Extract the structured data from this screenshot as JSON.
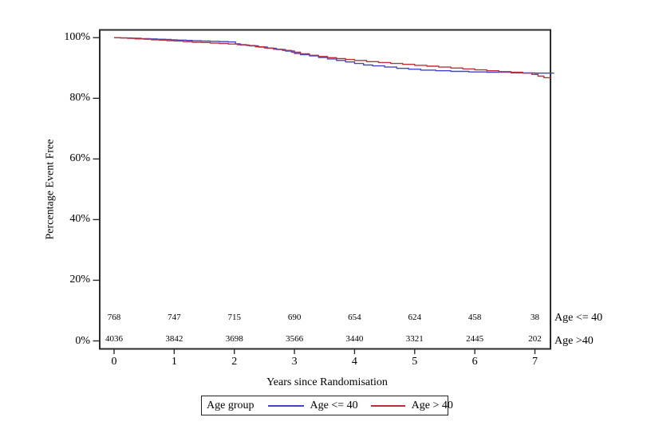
{
  "chart_data": {
    "type": "line",
    "subtype": "kaplan-meier-step",
    "title": "",
    "xlabel": "Years since Randomisation",
    "ylabel": "Percentage Event Free",
    "xlim": [
      0,
      7.3
    ],
    "ylim": [
      0,
      100
    ],
    "grid": false,
    "legend_position": "bottom",
    "axis_color": "#2b2b2b",
    "x_ticks": [
      {
        "value": 0,
        "label": "0"
      },
      {
        "value": 1,
        "label": "1"
      },
      {
        "value": 2,
        "label": "2"
      },
      {
        "value": 3,
        "label": "3"
      },
      {
        "value": 4,
        "label": "4"
      },
      {
        "value": 5,
        "label": "5"
      },
      {
        "value": 6,
        "label": "6"
      },
      {
        "value": 7,
        "label": "7"
      }
    ],
    "y_ticks": [
      {
        "value": 0,
        "label": "0%"
      },
      {
        "value": 20,
        "label": "20%"
      },
      {
        "value": 40,
        "label": "40%"
      },
      {
        "value": 60,
        "label": "60%"
      },
      {
        "value": 80,
        "label": "80%"
      },
      {
        "value": 100,
        "label": "100%"
      }
    ],
    "series": [
      {
        "name": "Age <= 40",
        "color": "#4343c8",
        "points": [
          [
            0,
            100
          ],
          [
            0.12,
            99.9
          ],
          [
            0.3,
            99.8
          ],
          [
            0.45,
            99.7
          ],
          [
            0.6,
            99.6
          ],
          [
            0.72,
            99.5
          ],
          [
            0.85,
            99.4
          ],
          [
            0.95,
            99.3
          ],
          [
            1.05,
            99.2
          ],
          [
            1.2,
            99.1
          ],
          [
            1.3,
            99.0
          ],
          [
            1.45,
            98.9
          ],
          [
            1.6,
            98.8
          ],
          [
            1.75,
            98.7
          ],
          [
            1.9,
            98.6
          ],
          [
            2.02,
            98.0
          ],
          [
            2.1,
            97.6
          ],
          [
            2.25,
            97.3
          ],
          [
            2.4,
            96.9
          ],
          [
            2.55,
            96.5
          ],
          [
            2.7,
            96.1
          ],
          [
            2.85,
            95.6
          ],
          [
            3.0,
            94.8
          ],
          [
            3.1,
            94.4
          ],
          [
            3.25,
            94.0
          ],
          [
            3.4,
            93.5
          ],
          [
            3.55,
            93.0
          ],
          [
            3.7,
            92.5
          ],
          [
            3.85,
            92.0
          ],
          [
            4.0,
            91.5
          ],
          [
            4.15,
            91.0
          ],
          [
            4.3,
            90.7
          ],
          [
            4.5,
            90.3
          ],
          [
            4.7,
            89.9
          ],
          [
            4.9,
            89.6
          ],
          [
            5.1,
            89.3
          ],
          [
            5.35,
            89.1
          ],
          [
            5.6,
            88.9
          ],
          [
            5.9,
            88.7
          ],
          [
            6.2,
            88.6
          ],
          [
            6.6,
            88.4
          ],
          [
            7.0,
            88.3
          ],
          [
            7.32,
            88.3
          ]
        ]
      },
      {
        "name": "Age > 40",
        "color": "#bb3038",
        "points": [
          [
            0,
            100
          ],
          [
            0.1,
            99.9
          ],
          [
            0.22,
            99.8
          ],
          [
            0.35,
            99.6
          ],
          [
            0.5,
            99.5
          ],
          [
            0.62,
            99.3
          ],
          [
            0.75,
            99.2
          ],
          [
            0.88,
            99.0
          ],
          [
            1.0,
            98.9
          ],
          [
            1.15,
            98.7
          ],
          [
            1.3,
            98.5
          ],
          [
            1.45,
            98.4
          ],
          [
            1.6,
            98.2
          ],
          [
            1.75,
            98.1
          ],
          [
            1.9,
            97.9
          ],
          [
            2.05,
            97.7
          ],
          [
            2.2,
            97.4
          ],
          [
            2.35,
            97.0
          ],
          [
            2.5,
            96.6
          ],
          [
            2.65,
            96.2
          ],
          [
            2.8,
            95.8
          ],
          [
            2.95,
            95.2
          ],
          [
            3.1,
            94.7
          ],
          [
            3.25,
            94.2
          ],
          [
            3.4,
            93.8
          ],
          [
            3.55,
            93.4
          ],
          [
            3.7,
            93.1
          ],
          [
            3.85,
            92.8
          ],
          [
            4.0,
            92.5
          ],
          [
            4.2,
            92.1
          ],
          [
            4.4,
            91.8
          ],
          [
            4.6,
            91.5
          ],
          [
            4.8,
            91.2
          ],
          [
            5.0,
            90.9
          ],
          [
            5.2,
            90.6
          ],
          [
            5.4,
            90.3
          ],
          [
            5.6,
            90.0
          ],
          [
            5.8,
            89.7
          ],
          [
            6.0,
            89.4
          ],
          [
            6.2,
            89.1
          ],
          [
            6.4,
            88.8
          ],
          [
            6.6,
            88.6
          ],
          [
            6.8,
            88.3
          ],
          [
            6.95,
            87.9
          ],
          [
            7.05,
            87.3
          ],
          [
            7.15,
            86.8
          ],
          [
            7.25,
            86.6
          ]
        ]
      }
    ],
    "at_risk": {
      "rows": [
        {
          "label": "Age <= 40",
          "counts": [
            "768",
            "747",
            "715",
            "690",
            "654",
            "624",
            "458",
            "38"
          ]
        },
        {
          "label": "Age >40",
          "counts": [
            "4036",
            "3842",
            "3698",
            "3566",
            "3440",
            "3321",
            "2445",
            "202"
          ]
        }
      ]
    }
  },
  "legend": {
    "title": "Age group",
    "entries": [
      {
        "label": "Age <= 40",
        "color": "#4343c8"
      },
      {
        "label": "Age > 40",
        "color": "#bb3038"
      }
    ]
  }
}
